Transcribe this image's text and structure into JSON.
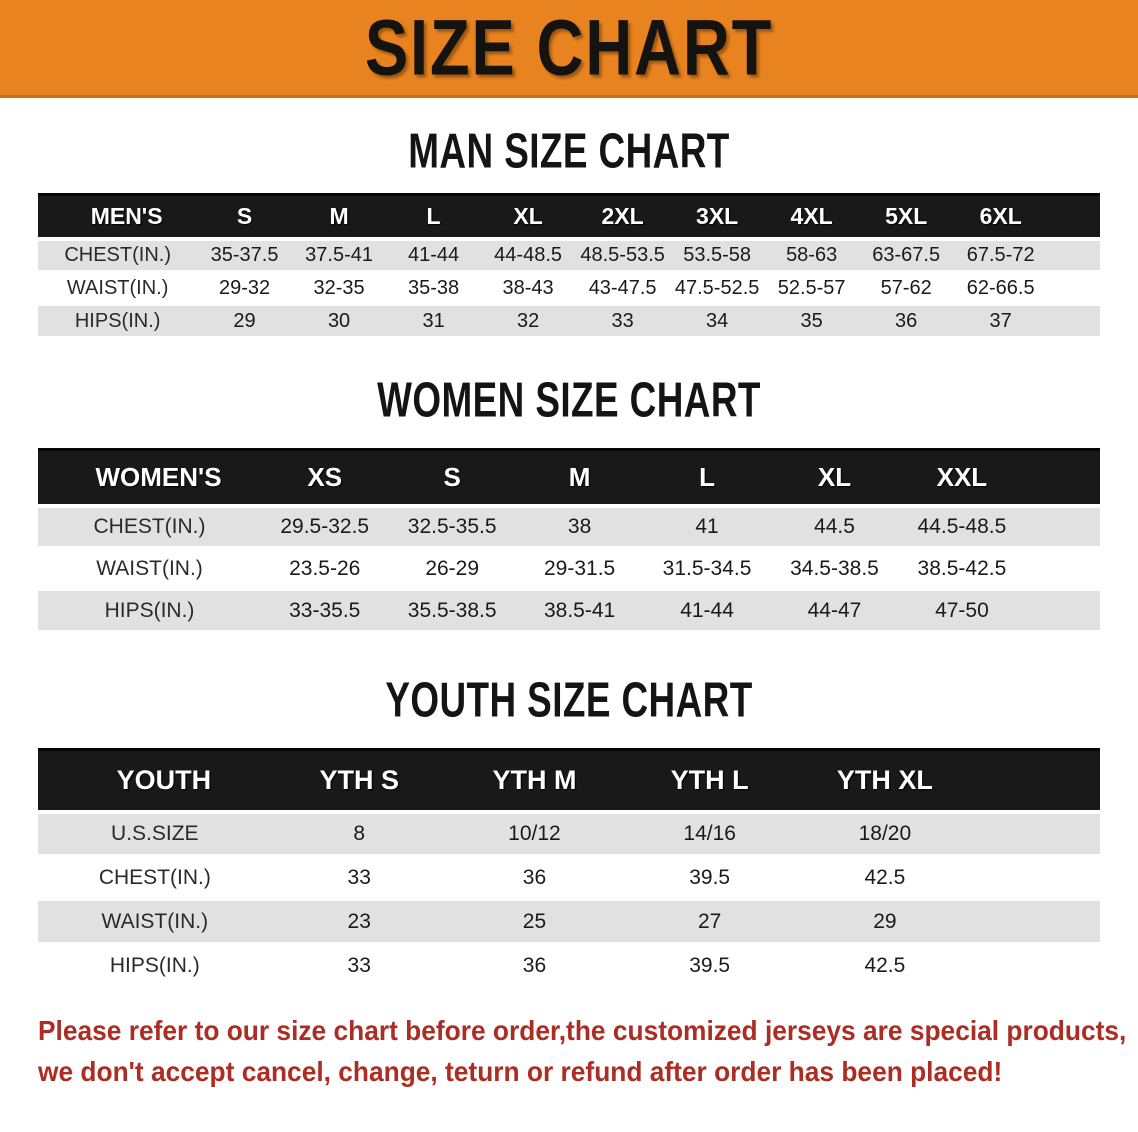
{
  "banner": {
    "title": "SIZE CHART",
    "background_color": "#E8831F",
    "text_color": "#151310"
  },
  "sections": [
    {
      "heading": "MAN SIZE CHART",
      "table": {
        "header_label": "MEN'S",
        "columns": [
          "S",
          "M",
          "L",
          "XL",
          "2XL",
          "3XL",
          "4XL",
          "5XL",
          "6XL"
        ],
        "rows": [
          {
            "label": "CHEST(IN.)",
            "values": [
              "35-37.5",
              "37.5-41",
              "41-44",
              "44-48.5",
              "48.5-53.5",
              "53.5-58",
              "58-63",
              "63-67.5",
              "67.5-72"
            ]
          },
          {
            "label": "WAIST(IN.)",
            "values": [
              "29-32",
              "32-35",
              "35-38",
              "38-43",
              "43-47.5",
              "47.5-52.5",
              "52.5-57",
              "57-62",
              "62-66.5"
            ]
          },
          {
            "label": "HIPS(IN.)",
            "values": [
              "29",
              "30",
              "31",
              "32",
              "33",
              "34",
              "35",
              "36",
              "37"
            ]
          }
        ]
      }
    },
    {
      "heading": "WOMEN SIZE CHART",
      "table": {
        "header_label": "WOMEN'S",
        "columns": [
          "XS",
          "S",
          "M",
          "L",
          "XL",
          "XXL"
        ],
        "rows": [
          {
            "label": "CHEST(IN.)",
            "values": [
              "29.5-32.5",
              "32.5-35.5",
              "38",
              "41",
              "44.5",
              "44.5-48.5"
            ]
          },
          {
            "label": "WAIST(IN.)",
            "values": [
              "23.5-26",
              "26-29",
              "29-31.5",
              "31.5-34.5",
              "34.5-38.5",
              "38.5-42.5"
            ]
          },
          {
            "label": "HIPS(IN.)",
            "values": [
              "33-35.5",
              "35.5-38.5",
              "38.5-41",
              "41-44",
              "44-47",
              "47-50"
            ]
          }
        ]
      }
    },
    {
      "heading": "YOUTH SIZE CHART",
      "table": {
        "header_label": "YOUTH",
        "columns": [
          "YTH S",
          "YTH M",
          "YTH L",
          "YTH XL"
        ],
        "rows": [
          {
            "label": "U.S.SIZE",
            "values": [
              "8",
              "10/12",
              "14/16",
              "18/20"
            ]
          },
          {
            "label": "CHEST(IN.)",
            "values": [
              "33",
              "36",
              "39.5",
              "42.5"
            ]
          },
          {
            "label": "WAIST(IN.)",
            "values": [
              "23",
              "25",
              "27",
              "29"
            ]
          },
          {
            "label": "HIPS(IN.)",
            "values": [
              "33",
              "36",
              "39.5",
              "42.5"
            ]
          }
        ]
      }
    }
  ],
  "disclaimer": {
    "line1": "Please refer to our size chart before order,the customized jerseys are special products,",
    "line2": "we don't accept cancel, change, teturn or refund after order has been placed!",
    "text_color": "#AC2D23"
  },
  "chart_data": [
    {
      "type": "table",
      "title": "MEN'S",
      "columns": [
        "S",
        "M",
        "L",
        "XL",
        "2XL",
        "3XL",
        "4XL",
        "5XL",
        "6XL"
      ],
      "rows": {
        "CHEST(IN.)": [
          "35-37.5",
          "37.5-41",
          "41-44",
          "44-48.5",
          "48.5-53.5",
          "53.5-58",
          "58-63",
          "63-67.5",
          "67.5-72"
        ],
        "WAIST(IN.)": [
          "29-32",
          "32-35",
          "35-38",
          "38-43",
          "43-47.5",
          "47.5-52.5",
          "52.5-57",
          "57-62",
          "62-66.5"
        ],
        "HIPS(IN.)": [
          "29",
          "30",
          "31",
          "32",
          "33",
          "34",
          "35",
          "36",
          "37"
        ]
      }
    },
    {
      "type": "table",
      "title": "WOMEN'S",
      "columns": [
        "XS",
        "S",
        "M",
        "L",
        "XL",
        "XXL"
      ],
      "rows": {
        "CHEST(IN.)": [
          "29.5-32.5",
          "32.5-35.5",
          "38",
          "41",
          "44.5",
          "44.5-48.5"
        ],
        "WAIST(IN.)": [
          "23.5-26",
          "26-29",
          "29-31.5",
          "31.5-34.5",
          "34.5-38.5",
          "38.5-42.5"
        ],
        "HIPS(IN.)": [
          "33-35.5",
          "35.5-38.5",
          "38.5-41",
          "41-44",
          "44-47",
          "47-50"
        ]
      }
    },
    {
      "type": "table",
      "title": "YOUTH",
      "columns": [
        "YTH S",
        "YTH M",
        "YTH L",
        "YTH XL"
      ],
      "rows": {
        "U.S.SIZE": [
          "8",
          "10/12",
          "14/16",
          "18/20"
        ],
        "CHEST(IN.)": [
          "33",
          "36",
          "39.5",
          "42.5"
        ],
        "WAIST(IN.)": [
          "23",
          "25",
          "27",
          "29"
        ],
        "HIPS(IN.)": [
          "33",
          "36",
          "39.5",
          "42.5"
        ]
      }
    }
  ]
}
